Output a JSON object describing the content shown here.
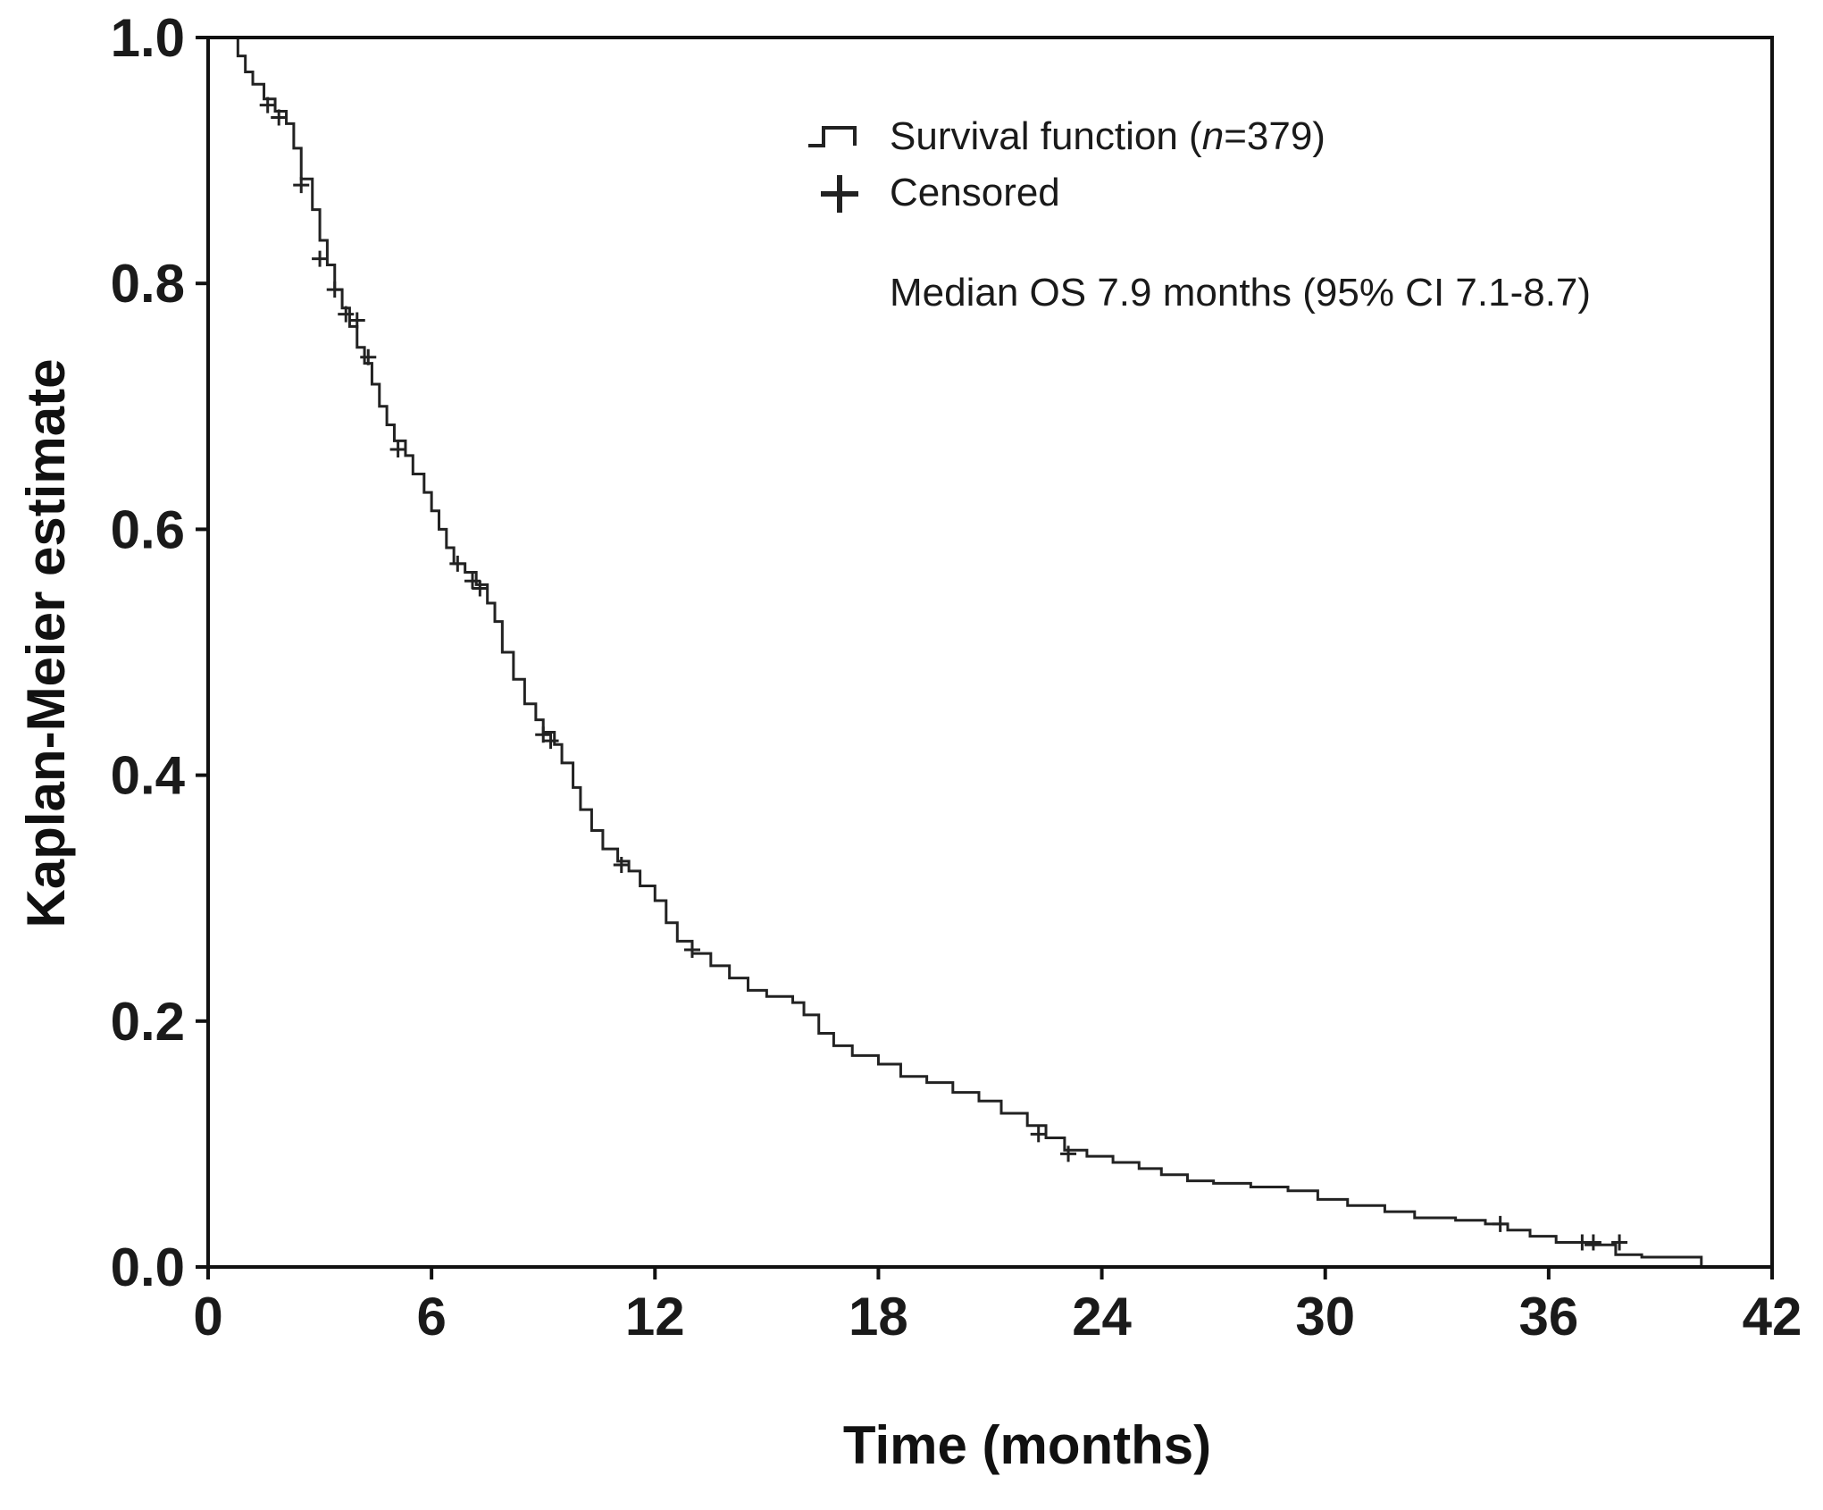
{
  "chart_data": {
    "type": "line",
    "title": "",
    "xlabel": "Time (months)",
    "ylabel": "Kaplan-Meier estimate",
    "xlim": [
      0,
      42
    ],
    "ylim": [
      0.0,
      1.0
    ],
    "xticks": [
      0,
      6,
      12,
      18,
      24,
      30,
      36,
      42
    ],
    "yticks": [
      0.0,
      0.2,
      0.4,
      0.6,
      0.8,
      1.0
    ],
    "xtick_labels": [
      "0",
      "6",
      "12",
      "18",
      "24",
      "30",
      "36",
      "42"
    ],
    "ytick_labels": [
      "0.0",
      "0.2",
      "0.4",
      "0.6",
      "0.8",
      "1.0"
    ],
    "grid": false,
    "legend_position": "top-right",
    "legend": {
      "survival_prefix": "Survival function (",
      "survival_n": "n",
      "survival_suffix": "=379)",
      "censored": "Censored"
    },
    "annotation": "Median OS 7.9 months (95% CI 7.1-8.7)",
    "series": [
      {
        "name": "Survival function (n=379)",
        "step": true,
        "points": [
          [
            0,
            1.0
          ],
          [
            0.6,
            1.0
          ],
          [
            0.8,
            0.985
          ],
          [
            1.0,
            0.972
          ],
          [
            1.2,
            0.962
          ],
          [
            1.5,
            0.95
          ],
          [
            1.8,
            0.94
          ],
          [
            2.1,
            0.93
          ],
          [
            2.3,
            0.91
          ],
          [
            2.5,
            0.885
          ],
          [
            2.8,
            0.86
          ],
          [
            3.0,
            0.835
          ],
          [
            3.2,
            0.815
          ],
          [
            3.4,
            0.795
          ],
          [
            3.6,
            0.78
          ],
          [
            3.8,
            0.765
          ],
          [
            4.0,
            0.748
          ],
          [
            4.2,
            0.735
          ],
          [
            4.4,
            0.718
          ],
          [
            4.6,
            0.7
          ],
          [
            4.8,
            0.685
          ],
          [
            5.0,
            0.672
          ],
          [
            5.3,
            0.66
          ],
          [
            5.5,
            0.645
          ],
          [
            5.8,
            0.63
          ],
          [
            6.0,
            0.615
          ],
          [
            6.2,
            0.6
          ],
          [
            6.4,
            0.585
          ],
          [
            6.6,
            0.572
          ],
          [
            6.9,
            0.565
          ],
          [
            7.2,
            0.555
          ],
          [
            7.5,
            0.54
          ],
          [
            7.7,
            0.525
          ],
          [
            7.9,
            0.5
          ],
          [
            8.2,
            0.478
          ],
          [
            8.5,
            0.458
          ],
          [
            8.8,
            0.445
          ],
          [
            9.0,
            0.435
          ],
          [
            9.3,
            0.425
          ],
          [
            9.5,
            0.41
          ],
          [
            9.8,
            0.39
          ],
          [
            10.0,
            0.372
          ],
          [
            10.3,
            0.355
          ],
          [
            10.6,
            0.34
          ],
          [
            11.0,
            0.33
          ],
          [
            11.3,
            0.322
          ],
          [
            11.6,
            0.31
          ],
          [
            12.0,
            0.298
          ],
          [
            12.3,
            0.28
          ],
          [
            12.6,
            0.265
          ],
          [
            13.0,
            0.255
          ],
          [
            13.5,
            0.245
          ],
          [
            14.0,
            0.235
          ],
          [
            14.5,
            0.225
          ],
          [
            15.0,
            0.22
          ],
          [
            15.7,
            0.215
          ],
          [
            16.0,
            0.205
          ],
          [
            16.4,
            0.19
          ],
          [
            16.8,
            0.18
          ],
          [
            17.3,
            0.172
          ],
          [
            18.0,
            0.165
          ],
          [
            18.6,
            0.155
          ],
          [
            19.3,
            0.15
          ],
          [
            20.0,
            0.142
          ],
          [
            20.7,
            0.135
          ],
          [
            21.3,
            0.125
          ],
          [
            22.0,
            0.115
          ],
          [
            22.5,
            0.105
          ],
          [
            23.0,
            0.095
          ],
          [
            23.6,
            0.09
          ],
          [
            24.3,
            0.085
          ],
          [
            25.0,
            0.08
          ],
          [
            25.6,
            0.075
          ],
          [
            26.3,
            0.07
          ],
          [
            27.0,
            0.068
          ],
          [
            28.0,
            0.065
          ],
          [
            29.0,
            0.062
          ],
          [
            29.8,
            0.055
          ],
          [
            30.6,
            0.05
          ],
          [
            31.6,
            0.045
          ],
          [
            32.4,
            0.04
          ],
          [
            33.5,
            0.038
          ],
          [
            34.3,
            0.035
          ],
          [
            34.9,
            0.03
          ],
          [
            35.5,
            0.025
          ],
          [
            36.2,
            0.02
          ],
          [
            37.0,
            0.018
          ],
          [
            37.8,
            0.01
          ],
          [
            38.5,
            0.008
          ],
          [
            40.0,
            0.008
          ],
          [
            40.1,
            0.0
          ]
        ]
      }
    ],
    "censored": [
      [
        1.6,
        0.945
      ],
      [
        1.9,
        0.935
      ],
      [
        2.5,
        0.88
      ],
      [
        3.0,
        0.82
      ],
      [
        3.4,
        0.795
      ],
      [
        3.7,
        0.775
      ],
      [
        4.0,
        0.77
      ],
      [
        4.3,
        0.74
      ],
      [
        5.1,
        0.665
      ],
      [
        6.7,
        0.572
      ],
      [
        7.1,
        0.558
      ],
      [
        7.3,
        0.552
      ],
      [
        9.0,
        0.433
      ],
      [
        9.2,
        0.428
      ],
      [
        11.1,
        0.327
      ],
      [
        13.0,
        0.258
      ],
      [
        22.3,
        0.108
      ],
      [
        23.1,
        0.092
      ],
      [
        34.7,
        0.035
      ],
      [
        36.9,
        0.02
      ],
      [
        37.2,
        0.02
      ],
      [
        37.9,
        0.02
      ]
    ]
  }
}
